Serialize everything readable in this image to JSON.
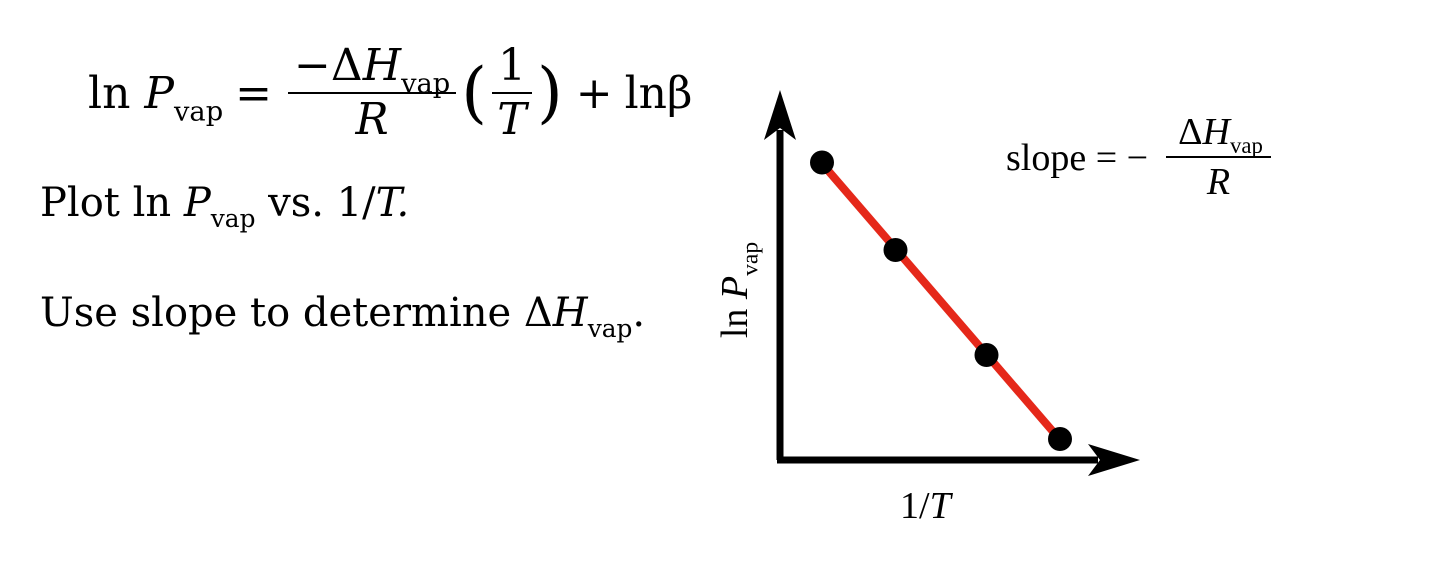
{
  "equation": {
    "lhs_ln": "ln",
    "lhs_var": "P",
    "lhs_sub": "vap",
    "equals": "=",
    "num_prefix": "−Δ",
    "num_var": "H",
    "num_sub": "vap",
    "den_var": "R",
    "inner_num": "1",
    "inner_den": "T",
    "paren_open": "(",
    "paren_close": ")",
    "plus": "+",
    "const": "lnβ"
  },
  "instructions": {
    "line1_prefix": "Plot ln ",
    "line1_var": "P",
    "line1_sub": "vap",
    "line1_mid": " vs. 1/",
    "line1_end": "T.",
    "line2_prefix": "Use slope to determine Δ",
    "line2_var": "H",
    "line2_sub": "vap",
    "line2_end": "."
  },
  "slope_label": {
    "text": "slope = −",
    "num_prefix": "Δ",
    "num_var": "H",
    "num_sub": "vap",
    "den": "R"
  },
  "y_axis_label": {
    "prefix": "ln ",
    "var": "P",
    "sub": "vap"
  },
  "x_axis_label": {
    "prefix": "1/",
    "var": "T"
  },
  "colors": {
    "line": "#e5281a",
    "points": "#000000",
    "axes": "#000000"
  },
  "chart_data": {
    "type": "scatter",
    "points": [
      {
        "x": 0.12,
        "y": 0.85
      },
      {
        "x": 0.33,
        "y": 0.6
      },
      {
        "x": 0.59,
        "y": 0.3
      },
      {
        "x": 0.8,
        "y": 0.06
      }
    ],
    "fit_line": {
      "x_start": 0.12,
      "x_end": 0.8
    },
    "xlim": [
      0,
      1
    ],
    "ylim": [
      0,
      1
    ],
    "xlabel": "1/T",
    "ylabel": "ln P vap",
    "grid": false
  }
}
